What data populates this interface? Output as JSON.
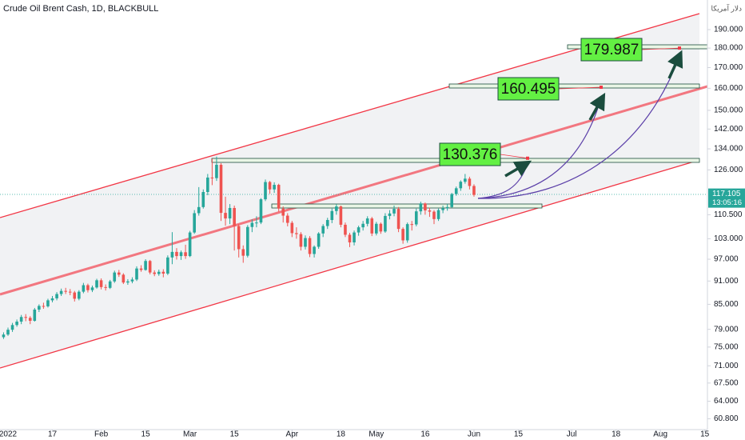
{
  "chart_data": {
    "type": "candlestick",
    "title": "Crude Oil Brent Cash, 1D, BLACKBULL",
    "currency": "دلار آمریکا",
    "log_scale": true,
    "up_color": "#26a69a",
    "down_color": "#ef5350",
    "last_price": 117.105,
    "countdown": "13:05:16",
    "targets": [
      130.376,
      160.495,
      179.987
    ],
    "xlim": [
      -0.8,
      158.6
    ],
    "ylim": [
      58.9,
      207.2
    ],
    "xticks": [
      {
        "value": 1,
        "label": "2022"
      },
      {
        "value": 11,
        "label": "17"
      },
      {
        "value": 22,
        "label": "Feb"
      },
      {
        "value": 32,
        "label": "15"
      },
      {
        "value": 42,
        "label": "Mar"
      },
      {
        "value": 52,
        "label": "15"
      },
      {
        "value": 65,
        "label": "Apr"
      },
      {
        "value": 76,
        "label": "18"
      },
      {
        "value": 84,
        "label": "May"
      },
      {
        "value": 95,
        "label": "16"
      },
      {
        "value": 106,
        "label": "Jun"
      },
      {
        "value": 116,
        "label": "15"
      },
      {
        "value": 128,
        "label": "Jul"
      },
      {
        "value": 138,
        "label": "18"
      },
      {
        "value": 148,
        "label": "Aug"
      },
      {
        "value": 158,
        "label": "15"
      }
    ],
    "yticks": [
      {
        "value": 190,
        "label": "190.000"
      },
      {
        "value": 180,
        "label": "180.000"
      },
      {
        "value": 170,
        "label": "170.000"
      },
      {
        "value": 160,
        "label": "160.000"
      },
      {
        "value": 150,
        "label": "150.000"
      },
      {
        "value": 142,
        "label": "142.000"
      },
      {
        "value": 134,
        "label": "134.000"
      },
      {
        "value": 126,
        "label": "126.000"
      },
      {
        "value": 110.5,
        "label": "110.500"
      },
      {
        "value": 103,
        "label": "103.000"
      },
      {
        "value": 97,
        "label": "97.000"
      },
      {
        "value": 91,
        "label": "91.000"
      },
      {
        "value": 85,
        "label": "85.000"
      },
      {
        "value": 79,
        "label": "79.000"
      },
      {
        "value": 75,
        "label": "75.000"
      },
      {
        "value": 71,
        "label": "71.000"
      },
      {
        "value": 67.5,
        "label": "67.500"
      },
      {
        "value": 64,
        "label": "64.000"
      },
      {
        "value": 60.8,
        "label": "60.800"
      }
    ],
    "candles": [
      [
        77.2,
        78.3,
        76.8,
        77.8
      ],
      [
        77.8,
        79.4,
        77.5,
        78.9
      ],
      [
        78.9,
        80.5,
        78.4,
        80.0
      ],
      [
        80.0,
        81.3,
        79.6,
        80.8
      ],
      [
        80.8,
        82.4,
        80.2,
        81.9
      ],
      [
        81.9,
        82.6,
        80.9,
        81.7
      ],
      [
        81.7,
        82.1,
        80.2,
        81.0
      ],
      [
        81.0,
        84.1,
        80.8,
        83.7
      ],
      [
        83.7,
        85.0,
        83.1,
        84.6
      ],
      [
        84.6,
        85.4,
        83.9,
        84.5
      ],
      [
        84.5,
        86.4,
        84.2,
        86.0
      ],
      [
        86.0,
        87.1,
        85.5,
        86.5
      ],
      [
        86.5,
        88.1,
        86.0,
        87.6
      ],
      [
        87.6,
        89.0,
        87.1,
        88.4
      ],
      [
        88.4,
        89.2,
        87.6,
        88.2
      ],
      [
        88.2,
        88.9,
        87.3,
        88.0
      ],
      [
        88.0,
        88.4,
        85.7,
        86.4
      ],
      [
        86.4,
        88.6,
        86.0,
        88.2
      ],
      [
        88.2,
        90.5,
        87.8,
        89.9
      ],
      [
        89.9,
        90.3,
        88.0,
        88.6
      ],
      [
        88.6,
        89.8,
        88.1,
        89.3
      ],
      [
        89.3,
        91.6,
        89.0,
        91.2
      ],
      [
        91.2,
        91.7,
        88.8,
        89.4
      ],
      [
        89.4,
        90.1,
        88.5,
        89.2
      ],
      [
        89.2,
        91.3,
        88.9,
        90.9
      ],
      [
        90.9,
        93.8,
        90.5,
        93.3
      ],
      [
        93.3,
        94.0,
        92.1,
        92.7
      ],
      [
        92.7,
        93.1,
        90.2,
        90.6
      ],
      [
        90.6,
        91.5,
        90.0,
        90.9
      ],
      [
        90.9,
        92.0,
        90.4,
        91.4
      ],
      [
        91.4,
        95.0,
        91.0,
        94.4
      ],
      [
        94.4,
        95.3,
        93.5,
        94.0
      ],
      [
        94.0,
        97.0,
        93.8,
        96.5
      ],
      [
        96.5,
        96.8,
        92.8,
        93.3
      ],
      [
        93.3,
        93.9,
        92.3,
        92.9
      ],
      [
        92.9,
        94.1,
        92.4,
        93.5
      ],
      [
        93.5,
        94.2,
        92.0,
        93.0
      ],
      [
        93.0,
        98.1,
        92.6,
        97.5
      ],
      [
        97.5,
        105.0,
        95.6,
        99.1
      ],
      [
        99.1,
        100.2,
        96.9,
        97.9
      ],
      [
        97.9,
        99.5,
        96.8,
        99.0
      ],
      [
        99.0,
        101.2,
        97.1,
        97.9
      ],
      [
        97.9,
        105.4,
        97.6,
        104.9
      ],
      [
        104.9,
        112.0,
        104.5,
        111.0
      ],
      [
        111.0,
        119.8,
        110.2,
        113.0
      ],
      [
        113.0,
        119.0,
        112.5,
        118.1
      ],
      [
        118.1,
        124.5,
        117.0,
        123.2
      ],
      [
        123.2,
        130.2,
        120.5,
        123.0
      ],
      [
        123.0,
        131.0,
        122.0,
        127.9
      ],
      [
        127.9,
        128.5,
        108.5,
        111.1
      ],
      [
        111.1,
        116.5,
        107.0,
        109.3
      ],
      [
        109.3,
        114.0,
        107.5,
        112.7
      ],
      [
        112.7,
        113.5,
        99.5,
        106.9
      ],
      [
        106.9,
        107.5,
        97.5,
        99.9
      ],
      [
        99.9,
        101.0,
        96.0,
        98.0
      ],
      [
        98.0,
        107.2,
        97.5,
        106.6
      ],
      [
        106.6,
        109.0,
        105.0,
        107.9
      ],
      [
        107.9,
        110.0,
        106.5,
        108.0
      ],
      [
        108.0,
        116.0,
        107.5,
        115.6
      ],
      [
        115.6,
        122.5,
        115.0,
        121.6
      ],
      [
        121.6,
        122.0,
        117.5,
        119.0
      ],
      [
        119.0,
        121.5,
        117.8,
        120.6
      ],
      [
        120.6,
        121.0,
        111.5,
        112.5
      ],
      [
        112.5,
        113.2,
        108.0,
        110.2
      ],
      [
        110.2,
        111.0,
        106.8,
        107.9
      ],
      [
        107.9,
        108.5,
        103.5,
        104.7
      ],
      [
        104.7,
        106.5,
        103.0,
        104.4
      ],
      [
        104.4,
        105.0,
        99.5,
        100.6
      ],
      [
        100.6,
        104.0,
        99.8,
        103.2
      ],
      [
        103.2,
        103.8,
        97.6,
        98.5
      ],
      [
        98.5,
        101.0,
        97.5,
        100.6
      ],
      [
        100.6,
        105.0,
        100.0,
        104.6
      ],
      [
        104.6,
        107.5,
        103.5,
        106.9
      ],
      [
        106.9,
        109.5,
        106.0,
        108.8
      ],
      [
        108.8,
        112.5,
        107.8,
        111.7
      ],
      [
        111.7,
        114.0,
        110.5,
        113.2
      ],
      [
        113.2,
        113.5,
        106.5,
        107.3
      ],
      [
        107.3,
        108.0,
        103.5,
        104.2
      ],
      [
        104.2,
        104.8,
        100.5,
        101.9
      ],
      [
        101.9,
        105.5,
        101.0,
        104.9
      ],
      [
        104.9,
        107.0,
        103.9,
        106.5
      ],
      [
        106.5,
        108.5,
        105.5,
        107.6
      ],
      [
        107.6,
        110.0,
        106.8,
        109.3
      ],
      [
        109.3,
        109.8,
        103.8,
        104.6
      ],
      [
        104.6,
        108.2,
        104.0,
        107.6
      ],
      [
        107.6,
        108.0,
        104.5,
        105.2
      ],
      [
        105.2,
        111.0,
        104.8,
        110.1
      ],
      [
        110.1,
        112.0,
        109.0,
        110.9
      ],
      [
        110.9,
        113.5,
        110.0,
        112.4
      ],
      [
        112.4,
        113.0,
        105.0,
        106.0
      ],
      [
        106.0,
        106.5,
        101.5,
        102.5
      ],
      [
        102.5,
        108.0,
        101.8,
        107.5
      ],
      [
        107.5,
        108.5,
        105.5,
        107.4
      ],
      [
        107.4,
        112.5,
        106.8,
        111.6
      ],
      [
        111.6,
        114.8,
        110.5,
        114.2
      ],
      [
        114.2,
        114.5,
        110.5,
        111.9
      ],
      [
        111.9,
        112.8,
        109.8,
        111.5
      ],
      [
        111.5,
        112.0,
        107.5,
        109.1
      ],
      [
        109.1,
        112.5,
        108.5,
        112.0
      ],
      [
        112.0,
        113.5,
        111.0,
        112.6
      ],
      [
        112.6,
        114.0,
        111.8,
        113.0
      ],
      [
        113.0,
        117.8,
        112.8,
        117.4
      ],
      [
        117.4,
        120.0,
        116.8,
        119.4
      ],
      [
        119.4,
        122.2,
        118.5,
        121.7
      ],
      [
        121.7,
        124.5,
        121.0,
        122.8
      ],
      [
        122.8,
        123.5,
        119.0,
        120.2
      ],
      [
        120.2,
        120.8,
        116.5,
        117.105
      ]
    ]
  }
}
